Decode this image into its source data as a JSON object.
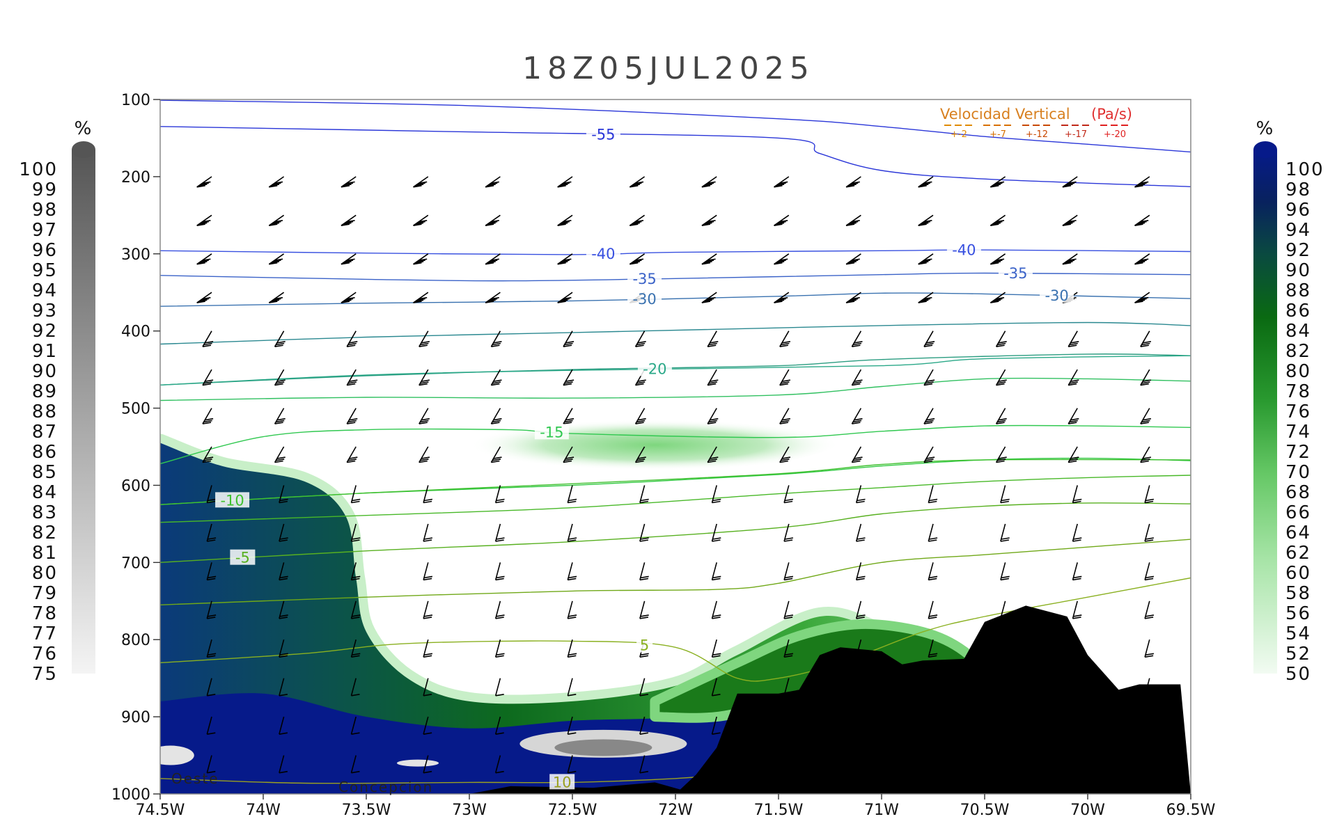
{
  "chart_data": {
    "type": "cross-section",
    "title": "18Z05JUL2025",
    "x_axis": {
      "ticks": [
        "74.5W",
        "74W",
        "73.5W",
        "73W",
        "72.5W",
        "72W",
        "71.5W",
        "71W",
        "70.5W",
        "70W",
        "69.5W"
      ],
      "lon_range": [
        -74.5,
        -69.5
      ]
    },
    "y_axis": {
      "scale": "linear",
      "inverted": true,
      "ticks": [
        "100",
        "200",
        "300",
        "400",
        "500",
        "600",
        "700",
        "800",
        "900",
        "1000"
      ],
      "range_hPa": [
        100,
        1000
      ]
    },
    "left_colorbar": {
      "unit": "%",
      "labels": [
        "100",
        "99",
        "98",
        "97",
        "96",
        "95",
        "94",
        "93",
        "92",
        "91",
        "90",
        "89",
        "88",
        "87",
        "86",
        "85",
        "84",
        "83",
        "82",
        "81",
        "80",
        "79",
        "78",
        "77",
        "76",
        "75"
      ],
      "colors": [
        "#555555",
        "#f2f2f2"
      ]
    },
    "right_colorbar": {
      "unit": "%",
      "labels": [
        "100",
        "98",
        "96",
        "94",
        "92",
        "90",
        "88",
        "86",
        "84",
        "82",
        "80",
        "78",
        "76",
        "74",
        "72",
        "70",
        "68",
        "66",
        "64",
        "62",
        "60",
        "58",
        "56",
        "54",
        "52",
        "50"
      ]
    },
    "legend": {
      "title": "Velocidad Vertical",
      "unit": "(Pa/s)",
      "values": [
        "+-2",
        "+-7",
        "+-12",
        "+-17",
        "+-20"
      ],
      "colors": [
        "#e08a00",
        "#d87000",
        "#c84800",
        "#c02818",
        "#e02020"
      ]
    },
    "temperature_contours": [
      {
        "label": "-55",
        "color": "#2a36d8",
        "points": [
          [
            -74.5,
            135
          ],
          [
            -73.0,
            142
          ],
          [
            -71.5,
            150
          ],
          [
            -71.3,
            170
          ],
          [
            -71.0,
            192
          ],
          [
            -70.5,
            203
          ],
          [
            -69.5,
            213
          ]
        ]
      },
      {
        "label": "",
        "color": "#2a36d8",
        "points": [
          [
            -74.5,
            101
          ],
          [
            -73.0,
            108
          ],
          [
            -71.5,
            125
          ],
          [
            -71.0,
            135
          ],
          [
            -70.5,
            148
          ],
          [
            -70.0,
            158
          ],
          [
            -69.5,
            168
          ]
        ]
      },
      {
        "label": "-40",
        "color": "#3850e0",
        "points": [
          [
            -74.5,
            296
          ],
          [
            -73.5,
            299
          ],
          [
            -72.5,
            301
          ],
          [
            -72.0,
            298
          ],
          [
            -71.0,
            296
          ],
          [
            -70.5,
            295
          ],
          [
            -69.5,
            297
          ]
        ]
      },
      {
        "label": "-35",
        "color": "#3a62c8",
        "points": [
          [
            -74.5,
            328
          ],
          [
            -73.5,
            333
          ],
          [
            -72.8,
            335
          ],
          [
            -72.0,
            332
          ],
          [
            -71.0,
            327
          ],
          [
            -70.5,
            325
          ],
          [
            -69.5,
            327
          ]
        ]
      },
      {
        "label": "-30",
        "color": "#3a72b0",
        "points": [
          [
            -74.5,
            368
          ],
          [
            -73.5,
            364
          ],
          [
            -72.5,
            361
          ],
          [
            -71.5,
            355
          ],
          [
            -71.0,
            351
          ],
          [
            -70.5,
            352
          ],
          [
            -69.5,
            358
          ]
        ]
      },
      {
        "label": "",
        "color": "#2a8890",
        "points": [
          [
            -74.5,
            417
          ],
          [
            -73.5,
            408
          ],
          [
            -72.5,
            402
          ],
          [
            -71.5,
            396
          ],
          [
            -71.0,
            393
          ],
          [
            -70.0,
            389
          ],
          [
            -69.5,
            393
          ]
        ]
      },
      {
        "label": "",
        "color": "#2a9c80",
        "points": [
          [
            -74.5,
            470
          ],
          [
            -73.5,
            458
          ],
          [
            -72.5,
            450
          ],
          [
            -71.5,
            445
          ],
          [
            -71.0,
            437
          ],
          [
            -70.0,
            430
          ],
          [
            -69.5,
            432
          ]
        ]
      },
      {
        "label": "-20",
        "color": "#2aa888",
        "points": [
          [
            -74.5,
            470
          ],
          [
            -73.5,
            457
          ],
          [
            -72.5,
            451
          ],
          [
            -71.0,
            445
          ],
          [
            -70.5,
            436
          ],
          [
            -69.5,
            432
          ]
        ]
      },
      {
        "label": "",
        "color": "#30c060",
        "points": [
          [
            -74.5,
            490
          ],
          [
            -73.5,
            486
          ],
          [
            -72.5,
            487
          ],
          [
            -71.5,
            483
          ],
          [
            -71.0,
            472
          ],
          [
            -70.5,
            462
          ],
          [
            -70.0,
            462
          ],
          [
            -69.5,
            465
          ]
        ]
      },
      {
        "label": "-15",
        "color": "#30c850",
        "points": [
          [
            -74.5,
            572
          ],
          [
            -74.0,
            537
          ],
          [
            -73.5,
            528
          ],
          [
            -72.8,
            528
          ],
          [
            -72.5,
            533
          ],
          [
            -71.5,
            538
          ],
          [
            -71.0,
            530
          ],
          [
            -70.5,
            523
          ],
          [
            -70.0,
            523
          ],
          [
            -69.5,
            525
          ]
        ]
      },
      {
        "label": "",
        "color": "#30c840",
        "points": [
          [
            -74.5,
            625
          ],
          [
            -73.5,
            610
          ],
          [
            -72.5,
            600
          ],
          [
            -71.5,
            586
          ],
          [
            -71.0,
            575
          ],
          [
            -70.5,
            567
          ],
          [
            -70.0,
            565
          ],
          [
            -69.5,
            568
          ]
        ]
      },
      {
        "label": "-10",
        "color": "#40c030",
        "points": [
          [
            -74.5,
            625
          ],
          [
            -73.5,
            610
          ],
          [
            -72.5,
            598
          ],
          [
            -71.5,
            585
          ],
          [
            -71.0,
            573
          ],
          [
            -70.5,
            567
          ],
          [
            -69.5,
            567
          ]
        ]
      },
      {
        "label": "",
        "color": "#48b828",
        "points": [
          [
            -74.5,
            648
          ],
          [
            -73.5,
            639
          ],
          [
            -72.5,
            629
          ],
          [
            -71.5,
            611
          ],
          [
            -71.0,
            603
          ],
          [
            -70.5,
            595
          ],
          [
            -70.0,
            590
          ],
          [
            -69.5,
            587
          ]
        ]
      },
      {
        "label": "-5",
        "color": "#58b020",
        "points": [
          [
            -74.5,
            700
          ],
          [
            -73.5,
            685
          ],
          [
            -72.5,
            673
          ],
          [
            -71.5,
            655
          ],
          [
            -71.0,
            637
          ],
          [
            -70.5,
            627
          ],
          [
            -70.0,
            623
          ],
          [
            -69.5,
            624
          ]
        ]
      },
      {
        "label": "",
        "color": "#70a818",
        "points": [
          [
            -74.5,
            755
          ],
          [
            -73.5,
            745
          ],
          [
            -72.5,
            737
          ],
          [
            -71.8,
            735
          ],
          [
            -71.5,
            727
          ],
          [
            -71.0,
            700
          ],
          [
            -70.5,
            690
          ],
          [
            -70.0,
            680
          ],
          [
            -69.5,
            670
          ]
        ]
      },
      {
        "label": "5",
        "color": "#8ab020",
        "points": [
          [
            -74.5,
            830
          ],
          [
            -73.8,
            818
          ],
          [
            -73.3,
            805
          ],
          [
            -72.5,
            802
          ],
          [
            -72.0,
            810
          ],
          [
            -71.7,
            850
          ],
          [
            -71.5,
            850
          ],
          [
            -71.2,
            830
          ],
          [
            -70.8,
            790
          ],
          [
            -70.5,
            770
          ],
          [
            -70.0,
            745
          ],
          [
            -69.5,
            720
          ]
        ]
      },
      {
        "label": "10",
        "color": "#9aa020",
        "points": [
          [
            -74.5,
            980
          ],
          [
            -73.8,
            986
          ],
          [
            -73.0,
            985
          ],
          [
            -72.5,
            985
          ],
          [
            -72.0,
            980
          ],
          [
            -71.8,
            975
          ]
        ]
      }
    ],
    "rh_regions": [
      {
        "name": "west-dense",
        "points": [
          [
            -74.5,
            545
          ],
          [
            -74.2,
            575
          ],
          [
            -73.8,
            595
          ],
          [
            -73.6,
            640
          ],
          [
            -73.55,
            720
          ],
          [
            -73.5,
            790
          ],
          [
            -73.3,
            850
          ],
          [
            -73.0,
            880
          ],
          [
            -72.5,
            880
          ],
          [
            -72.0,
            860
          ],
          [
            -71.7,
            820
          ],
          [
            -71.3,
            770
          ],
          [
            -71.0,
            790
          ],
          [
            -70.7,
            820
          ],
          [
            -70.2,
            900
          ],
          [
            -70.0,
            1000
          ],
          [
            -74.5,
            1000
          ]
        ]
      },
      {
        "name": "mid-patch",
        "points": [
          [
            -73.0,
            540
          ],
          [
            -72.6,
            520
          ],
          [
            -72.0,
            515
          ],
          [
            -71.5,
            525
          ],
          [
            -71.2,
            545
          ],
          [
            -71.6,
            575
          ],
          [
            -72.3,
            580
          ],
          [
            -73.0,
            565
          ]
        ]
      }
    ],
    "terrain": [
      [
        -72.0,
        1000
      ],
      [
        -71.9,
        975
      ],
      [
        -71.8,
        940
      ],
      [
        -71.7,
        870
      ],
      [
        -71.5,
        870
      ],
      [
        -71.4,
        865
      ],
      [
        -71.3,
        820
      ],
      [
        -71.2,
        810
      ],
      [
        -71.0,
        815
      ],
      [
        -70.9,
        832
      ],
      [
        -70.8,
        827
      ],
      [
        -70.6,
        825
      ],
      [
        -70.5,
        777
      ],
      [
        -70.3,
        756
      ],
      [
        -70.1,
        770
      ],
      [
        -70.0,
        820
      ],
      [
        -69.85,
        865
      ],
      [
        -69.75,
        858
      ],
      [
        -69.55,
        858
      ],
      [
        -69.5,
        1000
      ]
    ],
    "annotations": {
      "left_place": "Oeste",
      "mid_place": "Concepcion"
    }
  }
}
